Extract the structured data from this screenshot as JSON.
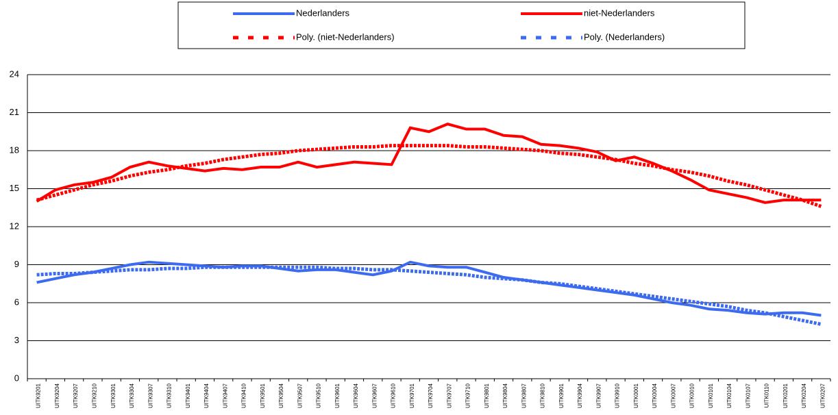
{
  "chart_data": {
    "type": "line",
    "categories": [
      "UITK9201",
      "UITK9204",
      "UITK9207",
      "UITK9210",
      "UITK9301",
      "UITK9304",
      "UITK9307",
      "UITK9310",
      "UITK9401",
      "UITK9404",
      "UITK9407",
      "UITK9410",
      "UITK9501",
      "UITK9504",
      "UITK9507",
      "UITK9510",
      "UITK9601",
      "UITK9604",
      "UITK9607",
      "UITK9610",
      "UITK9701",
      "UITK9704",
      "UITK9707",
      "UITK9710",
      "UITK9801",
      "UITK9804",
      "UITK9807",
      "UITK9810",
      "UITK9901",
      "UITK9904",
      "UITK9907",
      "UITK9910",
      "UITK0001",
      "UITK0004",
      "UITK0007",
      "UITK0010",
      "UITK0101",
      "UITK0104",
      "UITK0107",
      "UITK0110",
      "UITK0201",
      "UITK0204",
      "UITK0207"
    ],
    "series": [
      {
        "name": "Nederlanders",
        "color": "#3d6bef",
        "style": "solid",
        "values": [
          7.6,
          7.9,
          8.2,
          8.4,
          8.7,
          9.0,
          9.2,
          9.1,
          9.0,
          8.9,
          8.8,
          8.9,
          8.9,
          8.7,
          8.5,
          8.6,
          8.6,
          8.4,
          8.2,
          8.5,
          9.2,
          8.9,
          8.8,
          8.8,
          8.4,
          8.0,
          7.8,
          7.6,
          7.4,
          7.2,
          7.0,
          6.8,
          6.6,
          6.3,
          6.0,
          5.8,
          5.5,
          5.4,
          5.2,
          5.1,
          5.2,
          5.2,
          5.0
        ]
      },
      {
        "name": "niet-Nederlanders",
        "color": "#ff0000",
        "style": "solid",
        "values": [
          14.0,
          14.9,
          15.3,
          15.5,
          15.9,
          16.7,
          17.1,
          16.8,
          16.6,
          16.4,
          16.6,
          16.5,
          16.7,
          16.7,
          17.1,
          16.7,
          16.9,
          17.1,
          17.0,
          16.9,
          19.8,
          19.5,
          20.1,
          19.7,
          19.7,
          19.2,
          19.1,
          18.5,
          18.4,
          18.2,
          17.9,
          17.2,
          17.5,
          17.0,
          16.4,
          15.7,
          14.9,
          14.6,
          14.3,
          13.9,
          14.1,
          14.1,
          14.1
        ]
      },
      {
        "name": "Poly. (niet-Nederlanders)",
        "color": "#ff0000",
        "style": "dashed",
        "values": [
          14.1,
          14.5,
          14.9,
          15.3,
          15.6,
          16.0,
          16.3,
          16.5,
          16.8,
          17.0,
          17.3,
          17.5,
          17.7,
          17.8,
          18.0,
          18.1,
          18.2,
          18.3,
          18.3,
          18.4,
          18.4,
          18.4,
          18.4,
          18.3,
          18.3,
          18.2,
          18.1,
          18.0,
          17.8,
          17.7,
          17.5,
          17.3,
          17.0,
          16.8,
          16.5,
          16.3,
          16.0,
          15.6,
          15.3,
          14.9,
          14.5,
          14.1,
          13.6
        ]
      },
      {
        "name": "Poly. (Nederlanders)",
        "color": "#3d6bef",
        "style": "dashed",
        "values": [
          8.2,
          8.3,
          8.3,
          8.4,
          8.5,
          8.6,
          8.6,
          8.7,
          8.7,
          8.8,
          8.8,
          8.8,
          8.8,
          8.8,
          8.8,
          8.8,
          8.7,
          8.7,
          8.6,
          8.6,
          8.5,
          8.4,
          8.3,
          8.2,
          8.0,
          7.9,
          7.8,
          7.6,
          7.5,
          7.3,
          7.1,
          6.9,
          6.7,
          6.5,
          6.3,
          6.1,
          5.9,
          5.7,
          5.4,
          5.2,
          4.9,
          4.6,
          4.3
        ]
      }
    ],
    "ylim": [
      0,
      24
    ],
    "yticks": [
      0,
      3,
      6,
      9,
      12,
      15,
      18,
      21,
      24
    ],
    "grid": true,
    "legend": "top"
  }
}
